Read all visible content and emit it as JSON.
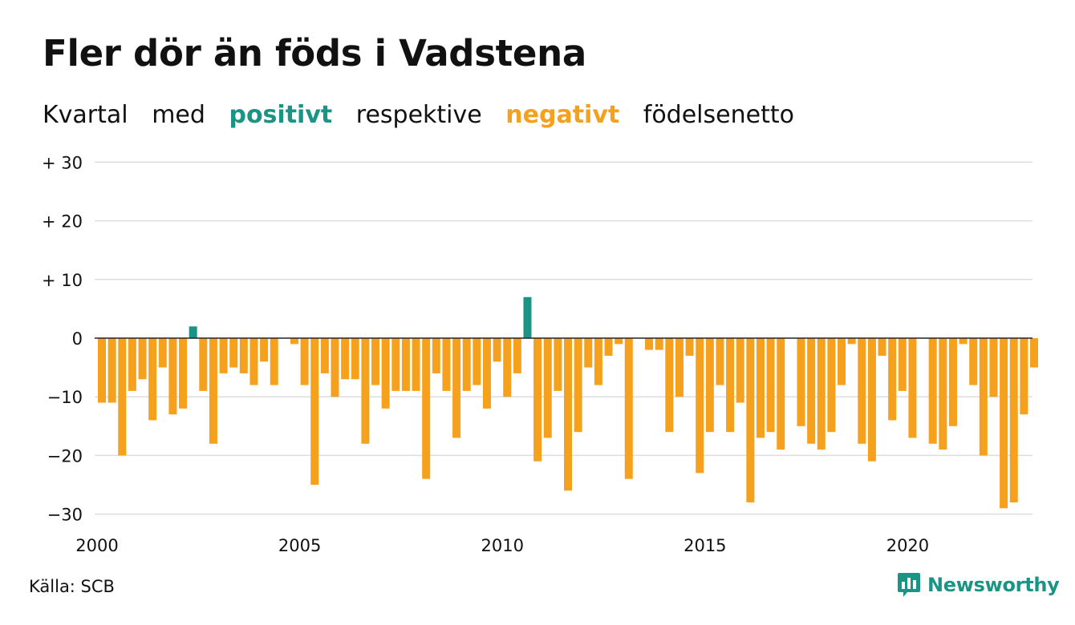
{
  "chart_data": {
    "type": "bar",
    "title": "Fler dör än föds i Vadstena",
    "subtitle": {
      "prefix": "Kvartal",
      "word1": "med",
      "positive_word": "positivt",
      "middle_word": "respektive",
      "negative_word": "negativt",
      "suffix": "födelsenetto"
    },
    "xlabel": "",
    "ylabel": "",
    "ylim": [
      -32,
      30
    ],
    "xlim": [
      2000,
      2023.75
    ],
    "yticks": [
      {
        "value": 30,
        "label": "+ 30"
      },
      {
        "value": 20,
        "label": "+ 20"
      },
      {
        "value": 10,
        "label": "+ 10"
      },
      {
        "value": 0,
        "label": "0"
      },
      {
        "value": -10,
        "label": "−10"
      },
      {
        "value": -20,
        "label": "−20"
      },
      {
        "value": -30,
        "label": "−30"
      }
    ],
    "xticks": [
      {
        "value": 2000,
        "label": "2000"
      },
      {
        "value": 2005,
        "label": "2005"
      },
      {
        "value": 2010,
        "label": "2010"
      },
      {
        "value": 2015,
        "label": "2015"
      },
      {
        "value": 2020,
        "label": "2020"
      }
    ],
    "grid": true,
    "start_year": 2000,
    "values": [
      -11,
      -11,
      -20,
      -9,
      -7,
      -14,
      -5,
      -13,
      -12,
      2,
      -9,
      -18,
      -6,
      -5,
      -6,
      -8,
      -4,
      -8,
      0,
      -1,
      -8,
      -25,
      -6,
      -10,
      -7,
      -7,
      -18,
      -8,
      -12,
      -9,
      -9,
      -9,
      -24,
      -6,
      -9,
      -17,
      -9,
      -8,
      -12,
      -4,
      -10,
      -6,
      7,
      -21,
      -17,
      -9,
      -26,
      -16,
      -5,
      -8,
      -3,
      -1,
      -24,
      0,
      -2,
      -2,
      -16,
      -10,
      -3,
      -23,
      -16,
      -8,
      -16,
      -11,
      -28,
      -17,
      -16,
      -19,
      0,
      -15,
      -18,
      -19,
      -16,
      -8,
      -1,
      -18,
      -21,
      -3,
      -14,
      -9,
      -17,
      0,
      -18,
      -19,
      -15,
      -1,
      -8,
      -20,
      -10,
      -29,
      -28,
      -13,
      -5
    ],
    "colors": {
      "positive": "#1a9585",
      "negative": "#f6a11e",
      "grid": "#dddddd",
      "axis": "#222222"
    }
  },
  "footer": {
    "source": "Källa: SCB",
    "brand": "Newsworthy",
    "brand_color": "#1a9585",
    "brand_icon": "bar-chart-speech-icon"
  }
}
